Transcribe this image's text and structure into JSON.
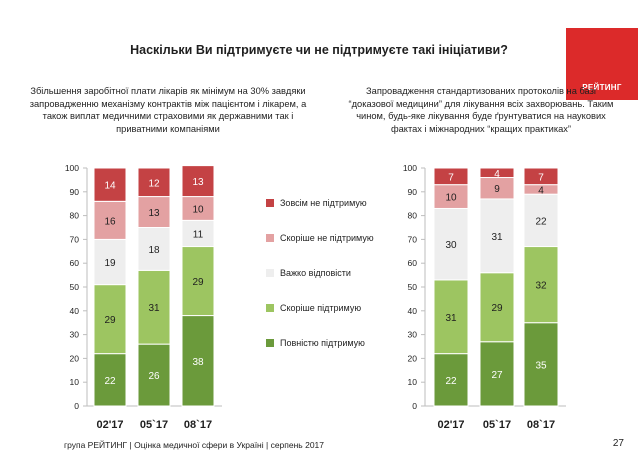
{
  "title": "Наскільки Ви підтримуєте чи не підтримуєте такі ініціативи?",
  "logo_text": "РЕЙТИНГ",
  "colors": {
    "fully_support": "#6b9a3b",
    "rather_support": "#9dc561",
    "hard_to_say": "#eeeeee",
    "rather_not_support": "#e3a1a2",
    "not_support": "#c44244",
    "brand": "#dc2a2a"
  },
  "legend": [
    {
      "label": "Зовсім не підтримую",
      "color_key": "not_support"
    },
    {
      "label": "Скоріше не підтримую",
      "color_key": "rather_not_support"
    },
    {
      "label": "Важко відповісти",
      "color_key": "hard_to_say"
    },
    {
      "label": "Скоріше підтримую",
      "color_key": "rather_support"
    },
    {
      "label": "Повністю підтримую",
      "color_key": "fully_support"
    }
  ],
  "chart_data": [
    {
      "type": "bar",
      "stacked": true,
      "title": "Збільшення заробітної плати лікарів як мінімум на 30% завдяки запровадженню механізму контрактів між пацієнтом і лікарем, а також виплат медичними страховими як державними так і приватними компаніями",
      "categories": [
        "02'17",
        "05`17",
        "08`17"
      ],
      "ylim": [
        0,
        100
      ],
      "yticks": [
        "0",
        "10",
        "20",
        "30",
        "40",
        "50",
        "60",
        "70",
        "80",
        "90",
        "100"
      ],
      "series": [
        {
          "name": "Повністю підтримую",
          "color_key": "fully_support",
          "values": [
            22,
            26,
            38
          ]
        },
        {
          "name": "Скоріше підтримую",
          "color_key": "rather_support",
          "values": [
            29,
            31,
            29
          ]
        },
        {
          "name": "Важко відповісти",
          "color_key": "hard_to_say",
          "values": [
            19,
            18,
            11
          ]
        },
        {
          "name": "Скоріше не підтримую",
          "color_key": "rather_not_support",
          "values": [
            16,
            13,
            10
          ]
        },
        {
          "name": "Зовсім не підтримую",
          "color_key": "not_support",
          "values": [
            14,
            12,
            13
          ]
        }
      ]
    },
    {
      "type": "bar",
      "stacked": true,
      "title": "Запровадження стандартизованих протоколів на базі “доказової медицини” для лікування всіх захворювань. Таким чином, будь-яке лікування буде ґрунтуватися на наукових фактах і міжнародних “кращих практиках”",
      "categories": [
        "02'17",
        "05`17",
        "08`17"
      ],
      "ylim": [
        0,
        100
      ],
      "yticks": [
        "0",
        "10",
        "20",
        "30",
        "40",
        "50",
        "60",
        "70",
        "80",
        "90",
        "100"
      ],
      "series": [
        {
          "name": "Повністю підтримую",
          "color_key": "fully_support",
          "values": [
            22,
            27,
            35
          ]
        },
        {
          "name": "Скоріше підтримую",
          "color_key": "rather_support",
          "values": [
            31,
            29,
            32
          ]
        },
        {
          "name": "Важко відповісти",
          "color_key": "hard_to_say",
          "values": [
            30,
            31,
            22
          ]
        },
        {
          "name": "Скоріше не підтримую",
          "color_key": "rather_not_support",
          "values": [
            10,
            9,
            4
          ]
        },
        {
          "name": "Зовсім не підтримую",
          "color_key": "not_support",
          "values": [
            7,
            4,
            7
          ]
        }
      ]
    }
  ],
  "subtitles": {
    "left": "Збільшення заробітної плати лікарів як мінімум на 30% завдяки запровадженню механізму контрактів між пацієнтом і лікарем, а також виплат медичними страховими як державними так і приватними компаніями",
    "right": "Запровадження стандартизованих протоколів на базі “доказової медицини” для лікування всіх захворювань. Таким чином, будь-яке лікування буде ґрунтуватися на наукових фактах і міжнародних “кращих практиках”"
  },
  "footer": "група РЕЙТИНГ | Оцінка медичної сфери в Україні | серпень 2017",
  "page_number": "27"
}
